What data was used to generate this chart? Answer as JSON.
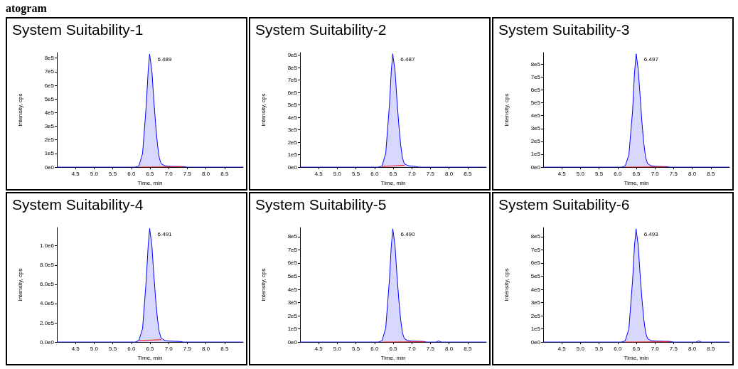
{
  "chart_data": [
    {
      "type": "area",
      "title": "System Suitability-1",
      "xlabel": "Time, min",
      "ylabel": "Intensity, cps",
      "xlim": [
        4.0,
        9.0
      ],
      "xticks": [
        4.5,
        {
          "value": 5,
          "label": "5.0"
        },
        5.5,
        {
          "value": 6,
          "label": "6.0"
        },
        6.5,
        {
          "value": 7,
          "label": "7.0"
        },
        7.5,
        {
          "value": 8,
          "label": "8.0"
        },
        8.5
      ],
      "ylim": [
        0,
        840000
      ],
      "yticks": [
        {
          "value": 0,
          "label": "0e0"
        },
        {
          "value": 100000,
          "label": "1e5"
        },
        {
          "value": 200000,
          "label": "2e5"
        },
        {
          "value": 300000,
          "label": "3e5"
        },
        {
          "value": 400000,
          "label": "4e5"
        },
        {
          "value": 500000,
          "label": "5e5"
        },
        {
          "value": 600000,
          "label": "6e5"
        },
        {
          "value": 700000,
          "label": "7e5"
        },
        {
          "value": 800000,
          "label": "8e5"
        }
      ],
      "annotations": [
        "atogram",
        {
          "text": "6.489",
          "x": 6.489,
          "y": 830000
        }
      ],
      "series": [
        {
          "color": "#0000ff",
          "x": [
            4.0,
            6.1,
            6.2,
            6.3,
            6.4,
            6.45,
            6.489,
            6.55,
            6.6,
            6.65,
            6.7,
            6.75,
            6.8,
            6.9,
            7.0,
            7.4,
            7.5,
            9.0
          ],
          "values": [
            0,
            0,
            8000,
            100000,
            456000,
            705000,
            830000,
            705000,
            498000,
            315000,
            166000,
            66000,
            25000,
            10000,
            6000,
            4000,
            0,
            0
          ]
        },
        {
          "type": "line",
          "color": "#ff0000",
          "x": [
            6.2,
            7.4
          ],
          "values": [
            0,
            2000
          ]
        }
      ]
    },
    {
      "type": "area",
      "title": "System Suitability-2",
      "xlabel": "Time, min",
      "ylabel": "Intensity, cps",
      "xlim": [
        4.0,
        9.0
      ],
      "xticks": [
        4.5,
        {
          "value": 5,
          "label": "5.0"
        },
        5.5,
        {
          "value": 6,
          "label": "6.0"
        },
        6.5,
        {
          "value": 7,
          "label": "7.0"
        },
        7.5,
        {
          "value": 8,
          "label": "8.0"
        },
        8.5
      ],
      "ylim": [
        0,
        920000
      ],
      "yticks": [
        {
          "value": 0,
          "label": "0e0"
        },
        {
          "value": 100000,
          "label": "1e5"
        },
        {
          "value": 200000,
          "label": "2e5"
        },
        {
          "value": 300000,
          "label": "3e5"
        },
        {
          "value": 400000,
          "label": "4e5"
        },
        {
          "value": 500000,
          "label": "5e5"
        },
        {
          "value": 600000,
          "label": "6e5"
        },
        {
          "value": 700000,
          "label": "7e5"
        },
        {
          "value": 800000,
          "label": "8e5"
        },
        {
          "value": 900000,
          "label": "9e5"
        }
      ],
      "annotations": [
        {
          "text": "6.487",
          "x": 6.487,
          "y": 910000
        }
      ],
      "series": [
        {
          "color": "#0000ff",
          "x": [
            4.0,
            6.1,
            6.2,
            6.3,
            6.4,
            6.45,
            6.487,
            6.55,
            6.6,
            6.65,
            6.7,
            6.75,
            6.8,
            6.9,
            7.0,
            7.1,
            7.2,
            9.0
          ],
          "values": [
            0,
            0,
            9000,
            110000,
            500000,
            775000,
            910000,
            775000,
            546000,
            346000,
            182000,
            73000,
            27000,
            12000,
            8000,
            5000,
            0,
            0
          ]
        },
        {
          "type": "line",
          "color": "#ff0000",
          "x": [
            6.2,
            6.5,
            6.8
          ],
          "values": [
            5000,
            10000,
            15000
          ]
        }
      ]
    },
    {
      "type": "area",
      "title": "System Suitability-3",
      "xlabel": "Time, min",
      "ylabel": "Intensity, cps",
      "xlim": [
        4.0,
        9.0
      ],
      "xticks": [
        4.5,
        {
          "value": 5,
          "label": "5.0"
        },
        5.5,
        {
          "value": 6,
          "label": "6.0"
        },
        6.5,
        {
          "value": 7,
          "label": "7.0"
        },
        7.5,
        {
          "value": 8,
          "label": "8.0"
        },
        8.5
      ],
      "ylim": [
        0,
        890000
      ],
      "yticks": [
        {
          "value": 0,
          "label": "0e0"
        },
        {
          "value": 100000,
          "label": "1e5"
        },
        {
          "value": 200000,
          "label": "2e5"
        },
        {
          "value": 300000,
          "label": "3e5"
        },
        {
          "value": 400000,
          "label": "4e5"
        },
        {
          "value": 500000,
          "label": "5e5"
        },
        {
          "value": 600000,
          "label": "6e5"
        },
        {
          "value": 700000,
          "label": "7e5"
        },
        {
          "value": 800000,
          "label": "8e5"
        }
      ],
      "annotations": [
        {
          "text": "6.497",
          "x": 6.497,
          "y": 880000
        }
      ],
      "series": [
        {
          "color": "#0000ff",
          "x": [
            4.0,
            6.1,
            6.2,
            6.3,
            6.4,
            6.45,
            6.497,
            6.55,
            6.6,
            6.65,
            6.7,
            6.75,
            6.8,
            6.9,
            7.0,
            7.3,
            7.4,
            9.0
          ],
          "values": [
            0,
            0,
            8000,
            95000,
            440000,
            730000,
            880000,
            760000,
            560000,
            350000,
            185000,
            75000,
            28000,
            10000,
            6000,
            4000,
            0,
            0
          ]
        },
        {
          "type": "line",
          "color": "#ff0000",
          "x": [
            6.2,
            7.3
          ],
          "values": [
            0,
            2000
          ]
        }
      ]
    },
    {
      "type": "area",
      "title": "System Suitability-4",
      "xlabel": "Time, min",
      "ylabel": "Intensity, cps",
      "xlim": [
        4.0,
        9.0
      ],
      "xticks": [
        4.5,
        {
          "value": 5,
          "label": "5.0"
        },
        5.5,
        {
          "value": 6,
          "label": "6.0"
        },
        6.5,
        {
          "value": 7,
          "label": "7.0"
        },
        7.5,
        {
          "value": 8,
          "label": "8.0"
        },
        8.5
      ],
      "ylim": [
        0,
        1190000
      ],
      "yticks": [
        {
          "value": 0,
          "label": "0.0e0"
        },
        {
          "value": 200000,
          "label": "2.0e5"
        },
        {
          "value": 400000,
          "label": "4.0e5"
        },
        {
          "value": 600000,
          "label": "6.0e5"
        },
        {
          "value": 800000,
          "label": "8.0e5"
        },
        {
          "value": 1000000,
          "label": "1.0e6"
        }
      ],
      "annotations": [
        {
          "text": "6.491",
          "x": 6.491,
          "y": 1180000
        }
      ],
      "series": [
        {
          "color": "#0000ff",
          "x": [
            4.0,
            6.1,
            6.2,
            6.3,
            6.4,
            6.45,
            6.491,
            6.55,
            6.6,
            6.65,
            6.7,
            6.75,
            6.8,
            6.9,
            7.0,
            7.3,
            7.4,
            9.0
          ],
          "values": [
            0,
            0,
            15000,
            140000,
            650000,
            1000000,
            1180000,
            1000000,
            710000,
            450000,
            240000,
            100000,
            40000,
            15000,
            10000,
            6000,
            0,
            0
          ]
        },
        {
          "type": "line",
          "color": "#ff0000",
          "x": [
            6.2,
            6.5,
            6.8
          ],
          "values": [
            15000,
            20000,
            25000
          ]
        }
      ]
    },
    {
      "type": "area",
      "title": "System Suitability-5",
      "xlabel": "Time, min",
      "ylabel": "Intensity, cps",
      "xlim": [
        4.0,
        9.0
      ],
      "xticks": [
        4.5,
        {
          "value": 5,
          "label": "5.0"
        },
        5.5,
        {
          "value": 6,
          "label": "6.0"
        },
        6.5,
        {
          "value": 7,
          "label": "7.0"
        },
        7.5,
        {
          "value": 8,
          "label": "8.0"
        },
        8.5
      ],
      "ylim": [
        0,
        870000
      ],
      "yticks": [
        {
          "value": 0,
          "label": "0e0"
        },
        {
          "value": 100000,
          "label": "1e5"
        },
        {
          "value": 200000,
          "label": "2e5"
        },
        {
          "value": 300000,
          "label": "3e5"
        },
        {
          "value": 400000,
          "label": "4e5"
        },
        {
          "value": 500000,
          "label": "5e5"
        },
        {
          "value": 600000,
          "label": "6e5"
        },
        {
          "value": 700000,
          "label": "7e5"
        },
        {
          "value": 800000,
          "label": "8e5"
        }
      ],
      "annotations": [
        {
          "text": "6.490",
          "x": 6.49,
          "y": 860000
        }
      ],
      "series": [
        {
          "color": "#0000ff",
          "x": [
            4.0,
            6.1,
            6.2,
            6.3,
            6.4,
            6.45,
            6.49,
            6.55,
            6.6,
            6.65,
            6.7,
            6.75,
            6.8,
            6.9,
            7.0,
            7.3,
            7.4,
            7.65,
            7.72,
            7.8,
            9.0
          ],
          "values": [
            0,
            0,
            9000,
            105000,
            475000,
            730000,
            860000,
            730000,
            515000,
            327000,
            172000,
            69000,
            26000,
            10000,
            7000,
            5000,
            0,
            0,
            8000,
            0,
            0
          ]
        },
        {
          "type": "line",
          "color": "#ff0000",
          "x": [
            6.2,
            7.35
          ],
          "values": [
            0,
            2000
          ]
        }
      ]
    },
    {
      "type": "area",
      "title": "System Suitability-6",
      "xlabel": "Time, min",
      "ylabel": "Intensity, cps",
      "xlim": [
        4.0,
        9.0
      ],
      "xticks": [
        4.5,
        {
          "value": 5,
          "label": "5.0"
        },
        5.5,
        {
          "value": 6,
          "label": "6.0"
        },
        6.5,
        {
          "value": 7,
          "label": "7.0"
        },
        7.5,
        {
          "value": 8,
          "label": "8.0"
        },
        8.5
      ],
      "ylim": [
        0,
        870000
      ],
      "yticks": [
        {
          "value": 0,
          "label": "0e0"
        },
        {
          "value": 100000,
          "label": "1e5"
        },
        {
          "value": 200000,
          "label": "2e5"
        },
        {
          "value": 300000,
          "label": "3e5"
        },
        {
          "value": 400000,
          "label": "4e5"
        },
        {
          "value": 500000,
          "label": "5e5"
        },
        {
          "value": 600000,
          "label": "6e5"
        },
        {
          "value": 700000,
          "label": "7e5"
        },
        {
          "value": 800000,
          "label": "8e5"
        }
      ],
      "annotations": [
        {
          "text": "6.493",
          "x": 6.493,
          "y": 860000
        }
      ],
      "series": [
        {
          "color": "#0000ff",
          "x": [
            4.0,
            6.1,
            6.2,
            6.3,
            6.4,
            6.45,
            6.493,
            6.55,
            6.6,
            6.65,
            6.7,
            6.75,
            6.8,
            6.9,
            7.0,
            7.4,
            7.5,
            8.1,
            8.17,
            8.25,
            9.0
          ],
          "values": [
            0,
            0,
            8000,
            100000,
            470000,
            730000,
            860000,
            735000,
            520000,
            330000,
            175000,
            70000,
            27000,
            10000,
            7000,
            5000,
            0,
            0,
            8000,
            0,
            0
          ]
        },
        {
          "type": "line",
          "color": "#ff0000",
          "x": [
            6.2,
            7.4
          ],
          "values": [
            0,
            2000
          ]
        }
      ]
    }
  ]
}
